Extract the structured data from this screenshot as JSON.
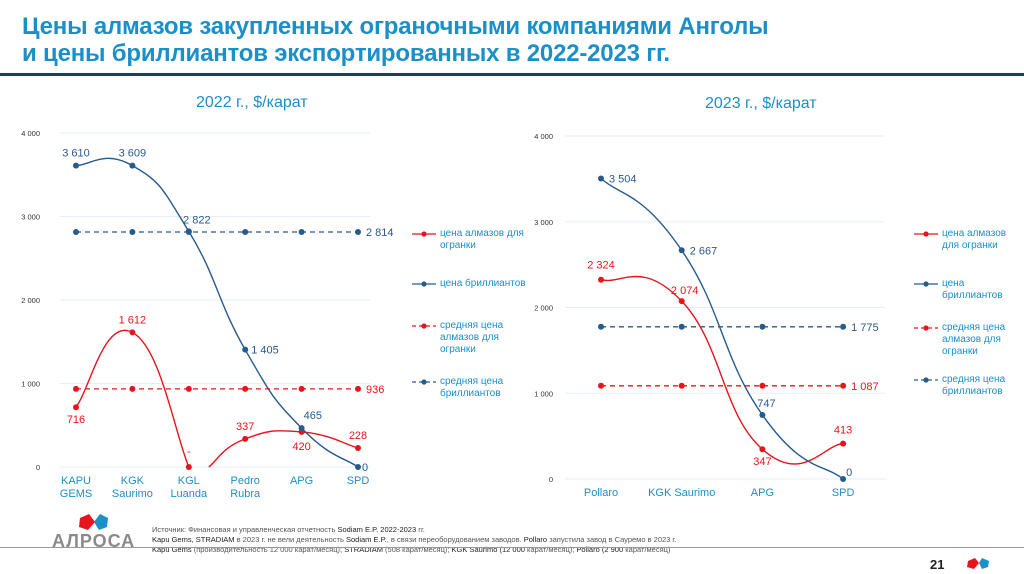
{
  "title_line1": "Цены алмазов закупленных ограночными компаниями Анголы",
  "title_line2": "и цены бриллиантов экспортированных в 2022-2023 гг.",
  "colors": {
    "rough": "#e8141c",
    "polished": "#285a8c",
    "accent": "#1b8fc8",
    "grid": "#e3eef8"
  },
  "legend": [
    {
      "label": "цена алмазов для огранки",
      "style": "solid",
      "series": "rough"
    },
    {
      "label": "цена бриллиантов",
      "style": "solid",
      "series": "polished"
    },
    {
      "label": "средняя цена алмазов для огранки",
      "style": "dashed",
      "series": "rough"
    },
    {
      "label": "средняя цена бриллиантов",
      "style": "dashed",
      "series": "polished"
    }
  ],
  "chart_data": [
    {
      "type": "line",
      "title": "2022 г., $/карат",
      "categories": [
        "KAPU GEMS",
        "KGK Saurimo",
        "KGL Luanda",
        "Pedro Rubra",
        "APG",
        "SPD"
      ],
      "yticks": [
        "0",
        "1 000",
        "2 000",
        "3 000",
        "4 000"
      ],
      "ylim": [
        0,
        4000
      ],
      "grid": true,
      "legend_position": "right",
      "series": [
        {
          "name": "цена алмазов для огранки",
          "key": "rough",
          "dashed": false,
          "values": [
            716,
            1612,
            0,
            337,
            420,
            228
          ],
          "labels": [
            "716",
            "1 612",
            "-",
            "337",
            "420",
            "228"
          ],
          "gap_after_index": 2
        },
        {
          "name": "цена бриллиантов",
          "key": "polished",
          "dashed": false,
          "values": [
            3610,
            3609,
            2822,
            1405,
            465,
            0
          ],
          "labels": [
            "3 610",
            "3 609",
            "2 822",
            "1 405",
            "465",
            "0"
          ]
        },
        {
          "name": "средняя цена алмазов для огранки",
          "key": "rough",
          "dashed": true,
          "values": [
            936,
            936,
            936,
            936,
            936,
            936
          ],
          "labels": [
            "",
            "",
            "",
            "",
            "",
            "936"
          ]
        },
        {
          "name": "средняя цена бриллиантов",
          "key": "polished",
          "dashed": true,
          "values": [
            2814,
            2814,
            2814,
            2814,
            2814,
            2814
          ],
          "labels": [
            "",
            "",
            "",
            "",
            "",
            "2 814"
          ]
        }
      ]
    },
    {
      "type": "line",
      "title": "2023 г., $/карат",
      "categories": [
        "Pollaro",
        "KGK Saurimo",
        "APG",
        "SPD"
      ],
      "yticks": [
        "0",
        "1 000",
        "2 000",
        "3 000",
        "4 000"
      ],
      "ylim": [
        0,
        4000
      ],
      "grid": true,
      "legend_position": "right",
      "series": [
        {
          "name": "цена алмазов для огранки",
          "key": "rough",
          "dashed": false,
          "values": [
            2324,
            2074,
            347,
            413
          ],
          "labels": [
            "2 324",
            "2 074",
            "347",
            "413"
          ]
        },
        {
          "name": "цена бриллиантов",
          "key": "polished",
          "dashed": false,
          "values": [
            3504,
            2667,
            747,
            0
          ],
          "labels": [
            "3 504",
            "2 667",
            "747",
            "0"
          ]
        },
        {
          "name": "средняя цена алмазов для огранки",
          "key": "rough",
          "dashed": true,
          "values": [
            1087,
            1087,
            1087,
            1087
          ],
          "labels": [
            "",
            "",
            "",
            "1 087"
          ]
        },
        {
          "name": "средняя цена бриллиантов",
          "key": "polished",
          "dashed": true,
          "values": [
            1775,
            1775,
            1775,
            1775
          ],
          "labels": [
            "",
            "",
            "",
            "1 775"
          ]
        }
      ]
    }
  ],
  "footer": {
    "source_prefix": "Источник: Финансовая и управленческая отчетность ",
    "source_bold": "Sodiam E.P. 2022-2023",
    "source_suffix": " гг.",
    "line2_a": "Kapu Gems, STRADIAM",
    "line2_b": " в 2023 г. не вели деятельность ",
    "line2_c": "Sodiam E.P.",
    "line2_d": ", в связи переоборудованием заводов. ",
    "line2_e": "Pollaro",
    "line2_f": " запустила завод в Сауремо в 2023 г.",
    "line3_a": "Kapu Gems",
    "line3_b": " (производительность 12 000 карат/месяц); ",
    "line3_c": "STRADIAM",
    "line3_d": " (508 карат/месяц); ",
    "line3_e": "KGK Saurimo (12 000",
    "line3_f": " карат/месяц); ",
    "line3_g": "Pollaro (2 900",
    "line3_h": " карат/месяц)"
  },
  "logo_text": "АЛРОСА",
  "page_number": "21"
}
